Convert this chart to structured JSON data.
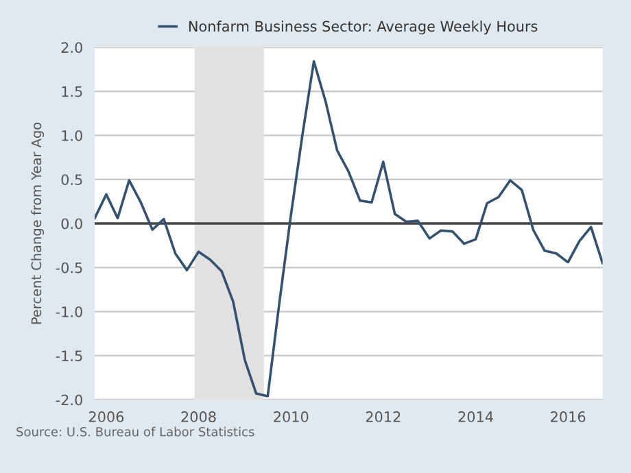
{
  "chart_data": {
    "type": "line",
    "ylabel": "Percent Change from Year Ago",
    "x": [
      "2005-10-01",
      "2006-01-01",
      "2006-04-01",
      "2006-07-01",
      "2006-10-01",
      "2007-01-01",
      "2007-04-01",
      "2007-07-01",
      "2007-10-01",
      "2008-01-01",
      "2008-04-01",
      "2008-07-01",
      "2008-10-01",
      "2009-01-01",
      "2009-04-01",
      "2009-07-01",
      "2009-10-01",
      "2010-01-01",
      "2010-04-01",
      "2010-07-01",
      "2010-10-01",
      "2011-01-01",
      "2011-04-01",
      "2011-07-01",
      "2011-10-01",
      "2012-01-01",
      "2012-04-01",
      "2012-07-01",
      "2012-10-01",
      "2013-01-01",
      "2013-04-01",
      "2013-07-01",
      "2013-10-01",
      "2014-01-01",
      "2014-04-01",
      "2014-07-01",
      "2014-10-01",
      "2015-01-01",
      "2015-04-01",
      "2015-07-01",
      "2015-10-01",
      "2016-01-01",
      "2016-04-01",
      "2016-07-01",
      "2016-10-01"
    ],
    "series": [
      {
        "name": "Nonfarm Business Sector: Average Weekly Hours",
        "color": "#34526f",
        "values": [
          0.06,
          0.33,
          0.06,
          0.49,
          0.24,
          -0.07,
          0.05,
          -0.34,
          -0.53,
          -0.32,
          -0.41,
          -0.54,
          -0.89,
          -1.55,
          -1.93,
          -1.96,
          -0.9,
          0.1,
          1.0,
          1.84,
          1.39,
          0.83,
          0.59,
          0.26,
          0.24,
          0.7,
          0.11,
          0.02,
          0.03,
          -0.17,
          -0.08,
          -0.09,
          -0.23,
          -0.18,
          0.23,
          0.3,
          0.49,
          0.38,
          -0.07,
          -0.31,
          -0.34,
          -0.44,
          -0.2,
          -0.04,
          -0.45
        ]
      }
    ],
    "xlim": [
      "2005-10-01",
      "2016-10-01"
    ],
    "xticks": [
      {
        "value": "2006-01-01",
        "label": "2006"
      },
      {
        "value": "2008-01-01",
        "label": "2008"
      },
      {
        "value": "2010-01-01",
        "label": "2010"
      },
      {
        "value": "2012-01-01",
        "label": "2012"
      },
      {
        "value": "2014-01-01",
        "label": "2014"
      },
      {
        "value": "2016-01-01",
        "label": "2016"
      }
    ],
    "ylim": [
      -2.0,
      2.0
    ],
    "yticks": [
      {
        "value": -2.0,
        "label": "-2.0"
      },
      {
        "value": -1.5,
        "label": "-1.5"
      },
      {
        "value": -1.0,
        "label": "-1.0"
      },
      {
        "value": -0.5,
        "label": "-0.5"
      },
      {
        "value": 0.0,
        "label": "0.0"
      },
      {
        "value": 0.5,
        "label": "0.5"
      },
      {
        "value": 1.0,
        "label": "1.0"
      },
      {
        "value": 1.5,
        "label": "1.5"
      },
      {
        "value": 2.0,
        "label": "2.0"
      }
    ],
    "ref_lines": [
      {
        "axis": "y",
        "value": 0,
        "color": "#444444"
      }
    ],
    "bands": [
      {
        "axis": "x",
        "from": "2007-12-01",
        "to": "2009-06-01",
        "color": "#e1e1e1"
      }
    ],
    "annotations": [
      "Source: U.S. Bureau of Labor Statistics"
    ],
    "grid": "y",
    "legend": "top",
    "marker": "none",
    "line_style": "solid"
  }
}
